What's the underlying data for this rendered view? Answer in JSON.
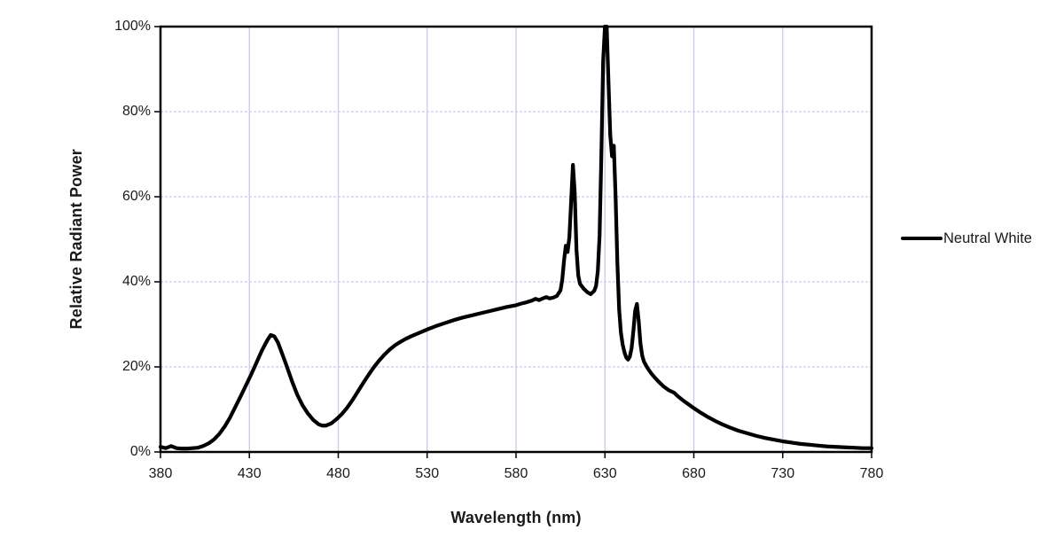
{
  "chart_data": {
    "type": "line",
    "title": "",
    "xlabel": "Wavelength (nm)",
    "ylabel": "Relative Radiant Power",
    "xlim": [
      380,
      780
    ],
    "ylim": [
      0,
      100
    ],
    "x_ticks": [
      380,
      430,
      480,
      530,
      580,
      630,
      680,
      730,
      780
    ],
    "x_tick_labels": [
      "380",
      "430",
      "480",
      "530",
      "580",
      "630",
      "680",
      "730",
      "780"
    ],
    "y_ticks": [
      0,
      20,
      40,
      60,
      80,
      100
    ],
    "y_tick_labels": [
      "0%",
      "20%",
      "40%",
      "60%",
      "80%",
      "100%"
    ],
    "grid": true,
    "legend_position": "right",
    "colors": {
      "line": "#000000",
      "grid": "#c9cce9",
      "axis_border": "#000000",
      "tick": "#000000",
      "text": "#1a1a1a",
      "background": "#ffffff"
    },
    "series": [
      {
        "name": "Neutral White",
        "points": [
          [
            380,
            1.2
          ],
          [
            383,
            0.9
          ],
          [
            386,
            1.4
          ],
          [
            389,
            0.9
          ],
          [
            392,
            0.8
          ],
          [
            395,
            0.8
          ],
          [
            398,
            0.9
          ],
          [
            401,
            1.0
          ],
          [
            404,
            1.4
          ],
          [
            407,
            2.0
          ],
          [
            410,
            2.9
          ],
          [
            413,
            4.2
          ],
          [
            416,
            5.9
          ],
          [
            419,
            8.0
          ],
          [
            422,
            10.5
          ],
          [
            425,
            13.0
          ],
          [
            428,
            15.6
          ],
          [
            431,
            18.2
          ],
          [
            434,
            21.0
          ],
          [
            437,
            23.8
          ],
          [
            440,
            26.2
          ],
          [
            442,
            27.5
          ],
          [
            444,
            27.2
          ],
          [
            446,
            25.8
          ],
          [
            448,
            23.6
          ],
          [
            451,
            20.2
          ],
          [
            454,
            16.6
          ],
          [
            457,
            13.4
          ],
          [
            460,
            10.9
          ],
          [
            463,
            9.0
          ],
          [
            466,
            7.5
          ],
          [
            469,
            6.5
          ],
          [
            471,
            6.2
          ],
          [
            473,
            6.2
          ],
          [
            476,
            6.7
          ],
          [
            479,
            7.7
          ],
          [
            482,
            8.9
          ],
          [
            485,
            10.4
          ],
          [
            488,
            12.2
          ],
          [
            491,
            14.2
          ],
          [
            494,
            16.2
          ],
          [
            497,
            18.1
          ],
          [
            500,
            19.9
          ],
          [
            503,
            21.5
          ],
          [
            506,
            22.9
          ],
          [
            509,
            24.1
          ],
          [
            512,
            25.1
          ],
          [
            515,
            25.9
          ],
          [
            518,
            26.6
          ],
          [
            521,
            27.2
          ],
          [
            525,
            27.9
          ],
          [
            530,
            28.8
          ],
          [
            535,
            29.6
          ],
          [
            540,
            30.3
          ],
          [
            545,
            31.0
          ],
          [
            550,
            31.6
          ],
          [
            555,
            32.1
          ],
          [
            560,
            32.6
          ],
          [
            565,
            33.1
          ],
          [
            570,
            33.6
          ],
          [
            575,
            34.1
          ],
          [
            580,
            34.5
          ],
          [
            583,
            34.9
          ],
          [
            586,
            35.2
          ],
          [
            589,
            35.6
          ],
          [
            591,
            36.0
          ],
          [
            593,
            35.7
          ],
          [
            595,
            36.1
          ],
          [
            597,
            36.4
          ],
          [
            599,
            36.1
          ],
          [
            601,
            36.3
          ],
          [
            603,
            36.7
          ],
          [
            605,
            38.0
          ],
          [
            606,
            40.5
          ],
          [
            607,
            45.0
          ],
          [
            608,
            48.5
          ],
          [
            609,
            47.0
          ],
          [
            610,
            50.5
          ],
          [
            611,
            59.0
          ],
          [
            612,
            67.5
          ],
          [
            613,
            61.0
          ],
          [
            614,
            47.5
          ],
          [
            615,
            41.5
          ],
          [
            616,
            39.5
          ],
          [
            618,
            38.4
          ],
          [
            620,
            37.6
          ],
          [
            622,
            37.1
          ],
          [
            624,
            37.9
          ],
          [
            625,
            39.0
          ],
          [
            626,
            42.5
          ],
          [
            627,
            51.0
          ],
          [
            628,
            70.0
          ],
          [
            629,
            92.0
          ],
          [
            630,
            100
          ],
          [
            631,
            100
          ],
          [
            632,
            87.0
          ],
          [
            633,
            74.5
          ],
          [
            634,
            69.5
          ],
          [
            635,
            72.0
          ],
          [
            636,
            60.0
          ],
          [
            637,
            44.5
          ],
          [
            638,
            33.5
          ],
          [
            639,
            28.0
          ],
          [
            640,
            25.2
          ],
          [
            641,
            23.4
          ],
          [
            642,
            22.2
          ],
          [
            643,
            21.7
          ],
          [
            644,
            22.4
          ],
          [
            645,
            24.4
          ],
          [
            646,
            28.4
          ],
          [
            647,
            33.2
          ],
          [
            648,
            34.8
          ],
          [
            649,
            30.8
          ],
          [
            650,
            25.4
          ],
          [
            651,
            22.6
          ],
          [
            652,
            21.2
          ],
          [
            654,
            19.7
          ],
          [
            656,
            18.5
          ],
          [
            658,
            17.5
          ],
          [
            660,
            16.6
          ],
          [
            663,
            15.4
          ],
          [
            666,
            14.5
          ],
          [
            669,
            13.9
          ],
          [
            671,
            13.1
          ],
          [
            674,
            12.1
          ],
          [
            677,
            11.2
          ],
          [
            680,
            10.3
          ],
          [
            684,
            9.2
          ],
          [
            688,
            8.2
          ],
          [
            692,
            7.3
          ],
          [
            696,
            6.5
          ],
          [
            700,
            5.8
          ],
          [
            705,
            5.0
          ],
          [
            710,
            4.4
          ],
          [
            715,
            3.8
          ],
          [
            720,
            3.3
          ],
          [
            725,
            2.9
          ],
          [
            730,
            2.5
          ],
          [
            735,
            2.2
          ],
          [
            740,
            1.9
          ],
          [
            745,
            1.7
          ],
          [
            750,
            1.5
          ],
          [
            755,
            1.3
          ],
          [
            760,
            1.2
          ],
          [
            765,
            1.1
          ],
          [
            770,
            1.0
          ],
          [
            775,
            0.9
          ],
          [
            780,
            0.9
          ]
        ]
      }
    ]
  }
}
